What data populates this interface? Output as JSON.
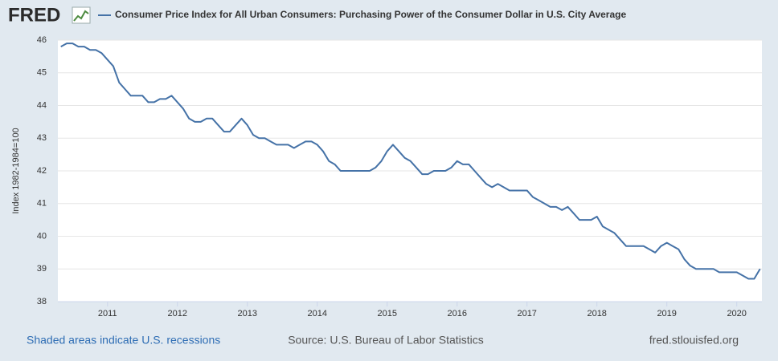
{
  "logo": "FRED",
  "chart_data": {
    "type": "line",
    "ylabel": "Index 1982-1984=100",
    "series": [
      {
        "name": "Consumer Price Index for All Urban Consumers: Purchasing Power of the Consumer Dollar in U.S. City Average",
        "color": "#4572a7",
        "values": [
          45.8,
          45.9,
          45.9,
          45.8,
          45.8,
          45.7,
          45.7,
          45.6,
          45.4,
          45.2,
          44.7,
          44.5,
          44.3,
          44.3,
          44.3,
          44.1,
          44.1,
          44.2,
          44.2,
          44.3,
          44.1,
          43.9,
          43.6,
          43.5,
          43.5,
          43.6,
          43.6,
          43.4,
          43.2,
          43.2,
          43.4,
          43.6,
          43.4,
          43.1,
          43.0,
          43.0,
          42.9,
          42.8,
          42.8,
          42.8,
          42.7,
          42.8,
          42.9,
          42.9,
          42.8,
          42.6,
          42.3,
          42.2,
          42.0,
          42.0,
          42.0,
          42.0,
          42.0,
          42.0,
          42.1,
          42.3,
          42.6,
          42.8,
          42.6,
          42.4,
          42.3,
          42.1,
          41.9,
          41.9,
          42.0,
          42.0,
          42.0,
          42.1,
          42.3,
          42.2,
          42.2,
          42.0,
          41.8,
          41.6,
          41.5,
          41.6,
          41.5,
          41.4,
          41.4,
          41.4,
          41.4,
          41.2,
          41.1,
          41.0,
          40.9,
          40.9,
          40.8,
          40.9,
          40.7,
          40.5,
          40.5,
          40.5,
          40.6,
          40.3,
          40.2,
          40.1,
          39.9,
          39.7,
          39.7,
          39.7,
          39.7,
          39.6,
          39.5,
          39.7,
          39.8,
          39.7,
          39.6,
          39.3,
          39.1,
          39.0,
          39.0,
          39.0,
          39.0,
          38.9,
          38.9,
          38.9,
          38.9,
          38.8,
          38.7,
          38.7,
          39.0
        ]
      }
    ],
    "x": [
      2010.333,
      2010.417,
      2010.5,
      2010.583,
      2010.667,
      2010.75,
      2010.833,
      2010.917,
      2011,
      2011.083,
      2011.167,
      2011.25,
      2011.333,
      2011.417,
      2011.5,
      2011.583,
      2011.667,
      2011.75,
      2011.833,
      2011.917,
      2012,
      2012.083,
      2012.167,
      2012.25,
      2012.333,
      2012.417,
      2012.5,
      2012.583,
      2012.667,
      2012.75,
      2012.833,
      2012.917,
      2013,
      2013.083,
      2013.167,
      2013.25,
      2013.333,
      2013.417,
      2013.5,
      2013.583,
      2013.667,
      2013.75,
      2013.833,
      2013.917,
      2014,
      2014.083,
      2014.167,
      2014.25,
      2014.333,
      2014.417,
      2014.5,
      2014.583,
      2014.667,
      2014.75,
      2014.833,
      2014.917,
      2015,
      2015.083,
      2015.167,
      2015.25,
      2015.333,
      2015.417,
      2015.5,
      2015.583,
      2015.667,
      2015.75,
      2015.833,
      2015.917,
      2016,
      2016.083,
      2016.167,
      2016.25,
      2016.333,
      2016.417,
      2016.5,
      2016.583,
      2016.667,
      2016.75,
      2016.833,
      2016.917,
      2017,
      2017.083,
      2017.167,
      2017.25,
      2017.333,
      2017.417,
      2017.5,
      2017.583,
      2017.667,
      2017.75,
      2017.833,
      2017.917,
      2018,
      2018.083,
      2018.167,
      2018.25,
      2018.333,
      2018.417,
      2018.5,
      2018.583,
      2018.667,
      2018.75,
      2018.833,
      2018.917,
      2019,
      2019.083,
      2019.167,
      2019.25,
      2019.333,
      2019.417,
      2019.5,
      2019.583,
      2019.667,
      2019.75,
      2019.833,
      2019.917,
      2020,
      2020.083,
      2020.167,
      2020.25,
      2020.333
    ],
    "xlim": [
      2010.29,
      2020.36
    ],
    "xticks": [
      2011,
      2012,
      2013,
      2014,
      2015,
      2016,
      2017,
      2018,
      2019,
      2020
    ],
    "ylim": [
      38,
      46
    ],
    "yticks": [
      38,
      39,
      40,
      41,
      42,
      43,
      44,
      45,
      46
    ],
    "grid": true,
    "notes": {
      "left": "Shaded areas indicate U.S. recessions",
      "center": "Source: U.S. Bureau of Labor Statistics",
      "right": "fred.stlouisfed.org"
    }
  }
}
